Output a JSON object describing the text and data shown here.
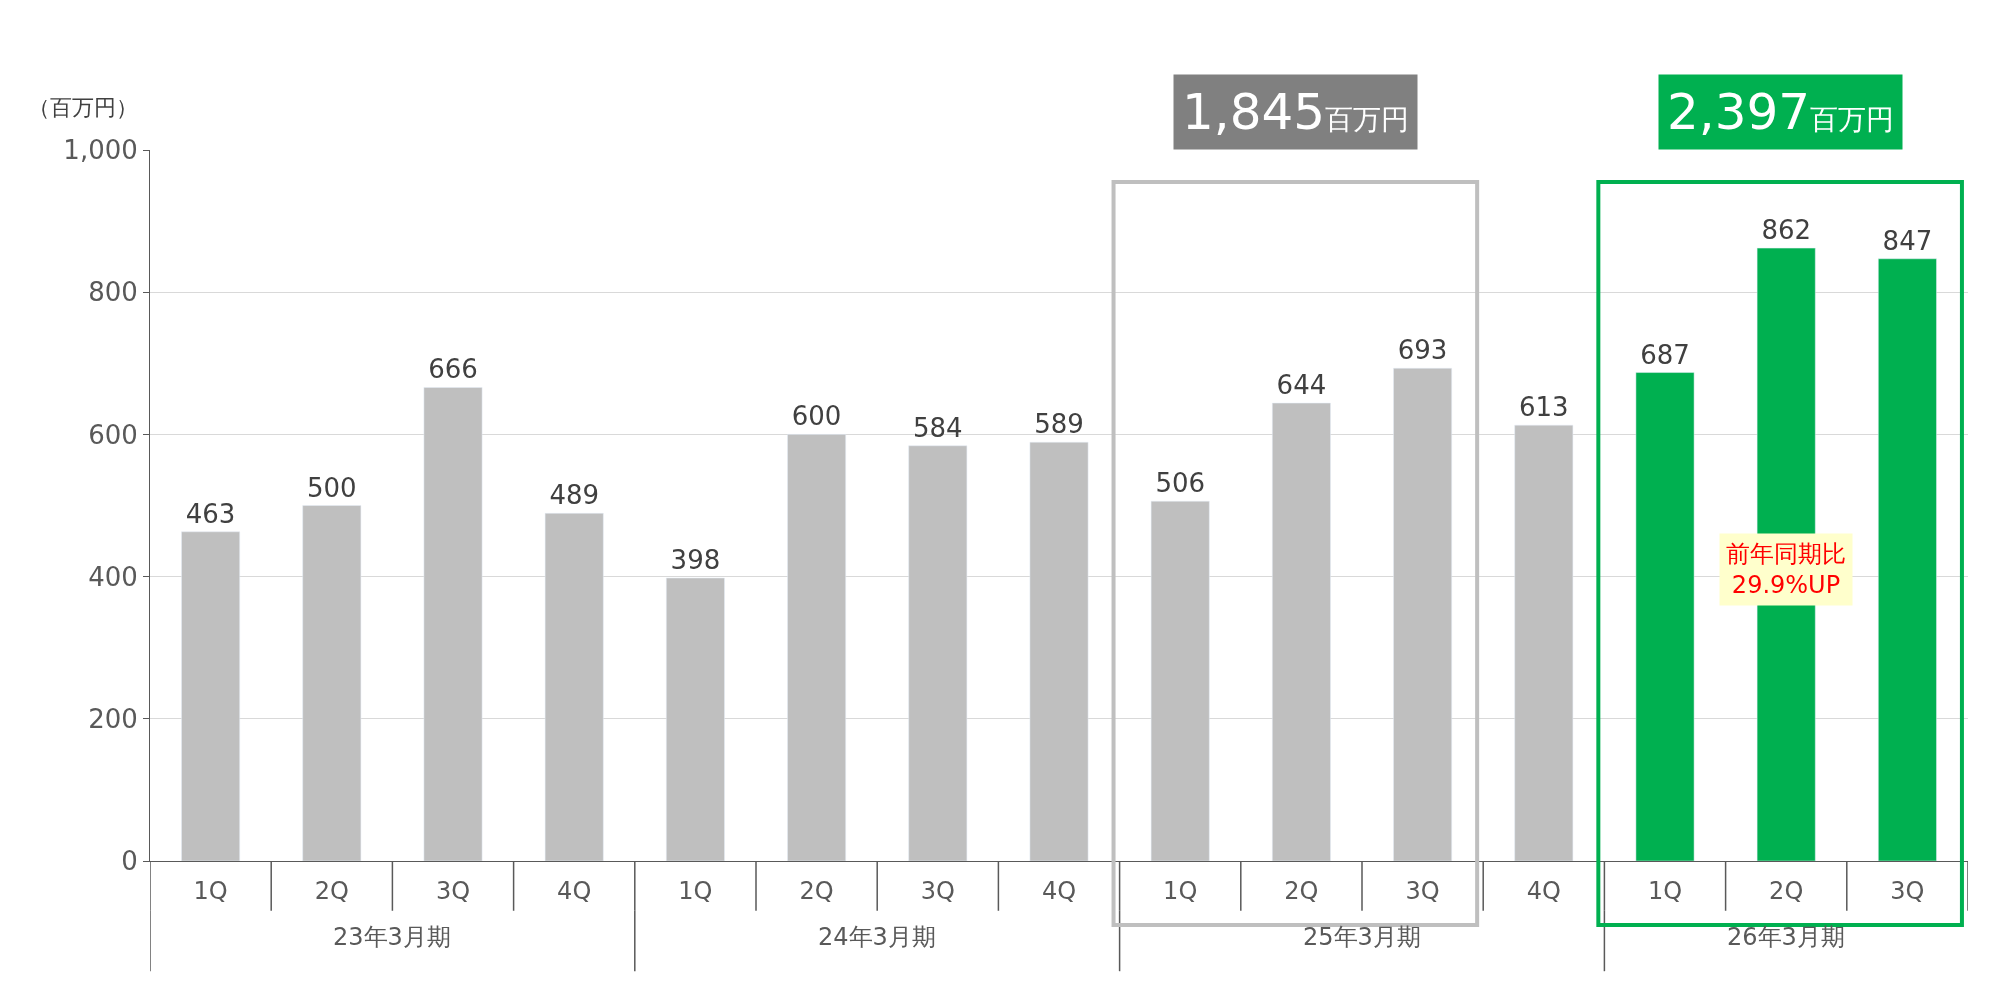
{
  "chart_data": {
    "type": "bar",
    "ylabel": "（百万円）",
    "categories": [
      "1Q",
      "2Q",
      "3Q",
      "4Q",
      "1Q",
      "2Q",
      "3Q",
      "4Q",
      "1Q",
      "2Q",
      "3Q",
      "4Q",
      "1Q",
      "2Q",
      "3Q"
    ],
    "values": [
      463,
      500,
      666,
      489,
      398,
      600,
      584,
      589,
      506,
      644,
      693,
      613,
      687,
      862,
      847
    ],
    "colors": [
      "#bfbfbf",
      "#bfbfbf",
      "#bfbfbf",
      "#bfbfbf",
      "#bfbfbf",
      "#bfbfbf",
      "#bfbfbf",
      "#bfbfbf",
      "#bfbfbf",
      "#bfbfbf",
      "#bfbfbf",
      "#bfbfbf",
      "#00b050",
      "#00b050",
      "#00b050"
    ],
    "data_labels": true,
    "ylim": [
      0,
      1000
    ],
    "yticks": [
      0,
      200,
      400,
      600,
      800,
      {
        "value": 1000,
        "label": "1,000"
      }
    ],
    "grid": "y",
    "annotations": [
      "23年3月期",
      "24年3月期",
      "25年3月期",
      "26年3月期",
      "1,845百万円",
      "2,397百万円",
      "前年同期比\n29.9%UP"
    ]
  }
}
